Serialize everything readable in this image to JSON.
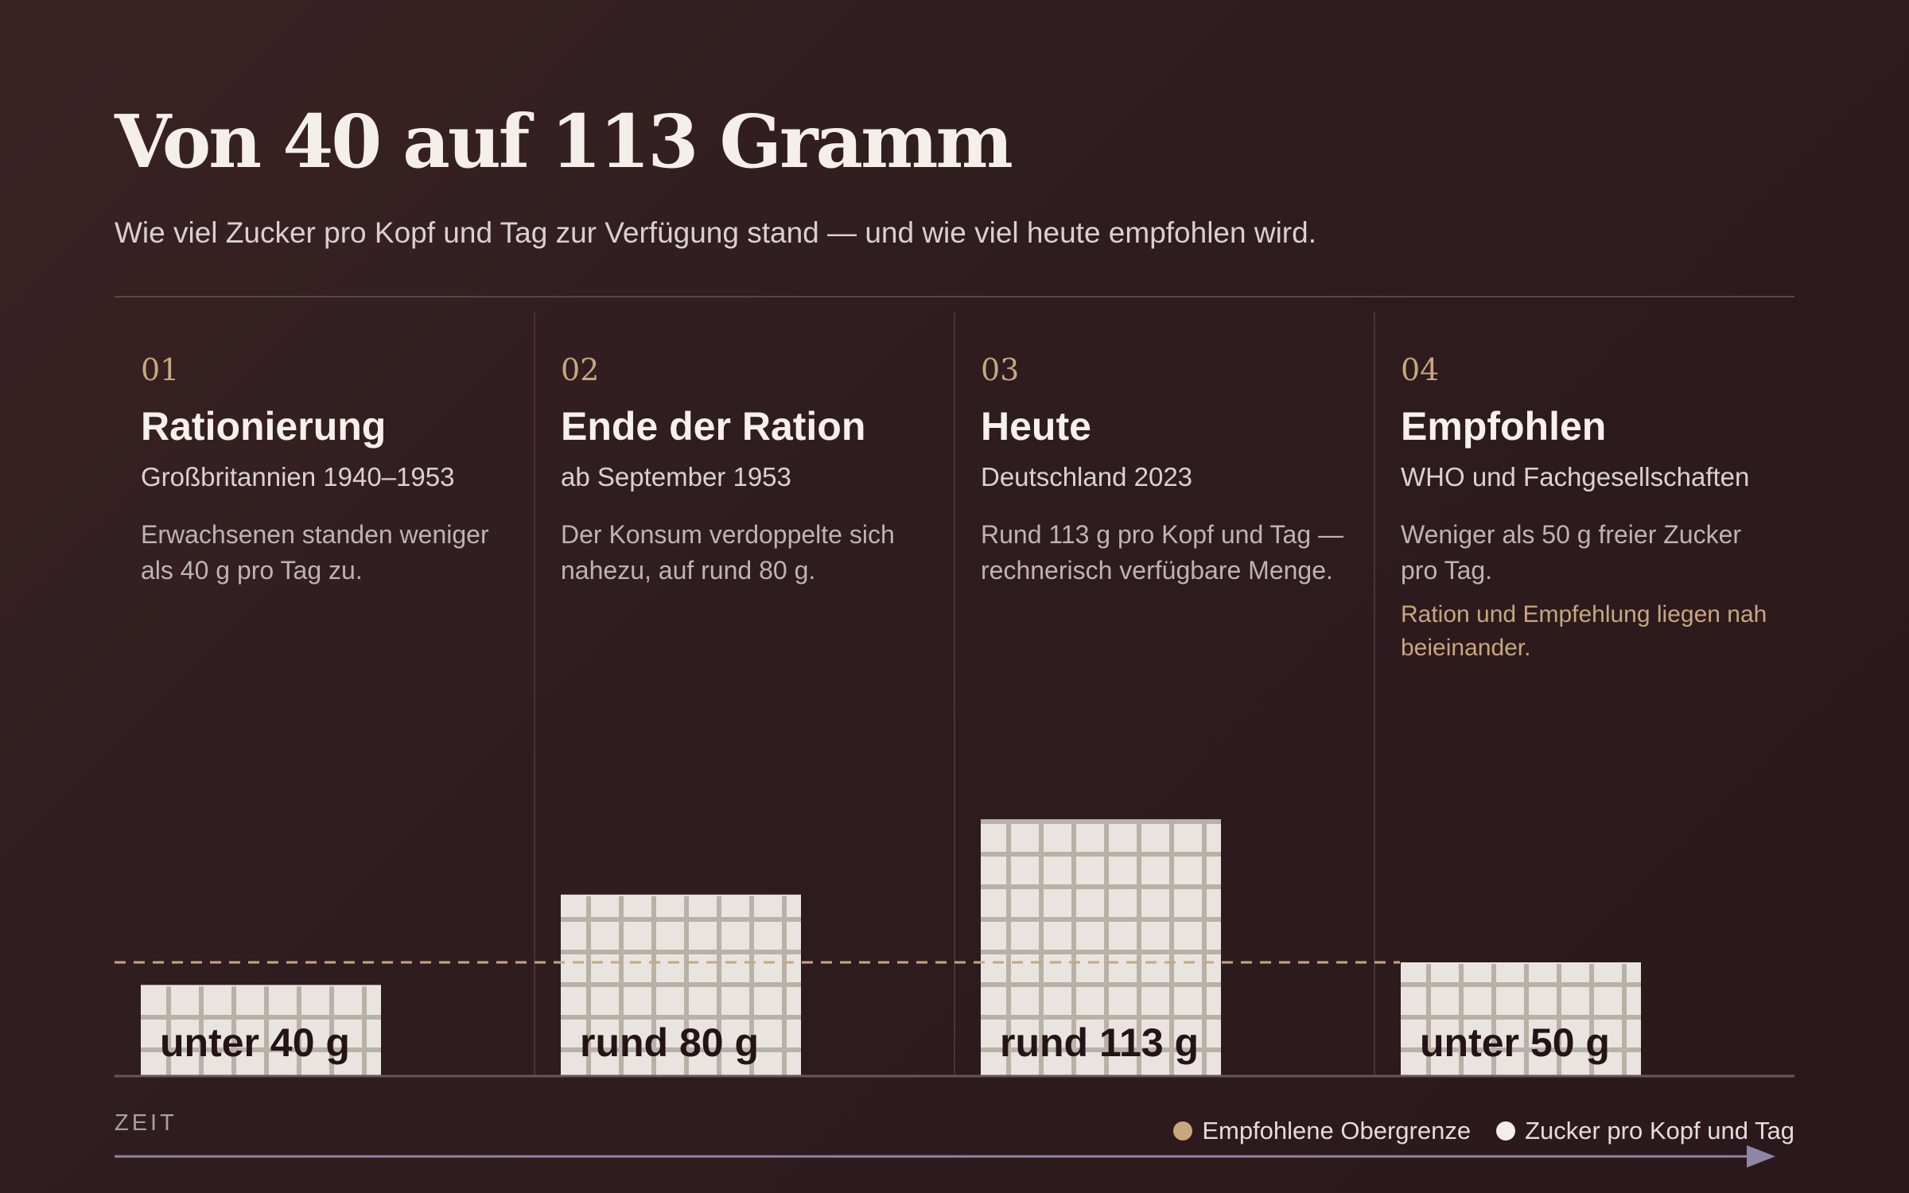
{
  "title": "Von 40 auf 113 Gramm",
  "subtitle": "Wie viel Zucker pro Kopf und Tag zur Verfügung stand — und wie viel heute empfohlen wird.",
  "columns": [
    {
      "num": "01",
      "name": "Rationierung",
      "place": "Großbritannien 1940–1953",
      "desc": "Erwachsenen standen weniger als 40 g pro Tag zu.",
      "note": ""
    },
    {
      "num": "02",
      "name": "Ende der Ration",
      "place": "ab September 1953",
      "desc": "Der Konsum verdoppelte sich nahezu, auf rund 80 g.",
      "note": ""
    },
    {
      "num": "03",
      "name": "Heute",
      "place": "Deutschland 2023",
      "desc": "Rund 113 g pro Kopf und Tag — rechnerisch verfügbare Menge.",
      "note": ""
    },
    {
      "num": "04",
      "name": "Empfohlen",
      "place": "WHO und Fachgesellschaften",
      "desc": "Weniger als 50 g freier Zucker pro Tag.",
      "note": "Ration und Empfehlung liegen nah beieinander."
    }
  ],
  "axis_label": "ZEIT",
  "legend": {
    "limit": "Empfohlene Obergrenze",
    "sugar": "Zucker pro Kopf und Tag"
  },
  "colors": {
    "background": "#2e1c1f",
    "accent": "#c8a77c",
    "cube": "#e9e4df",
    "cube_grid": "#b9b1a6"
  },
  "chart_data": {
    "type": "bar",
    "categories": [
      "Rationierung",
      "Ende der Ration",
      "Heute",
      "Empfohlen"
    ],
    "values": [
      40,
      80,
      113,
      50
    ],
    "value_labels": [
      "unter 40 g",
      "rund 80 g",
      "rund 113 g",
      "unter 50 g"
    ],
    "reference_line": {
      "value": 50,
      "label": "Empfohlene Obergrenze"
    },
    "series_name": "Zucker pro Kopf und Tag",
    "ylim": [
      0,
      113
    ],
    "grid": false,
    "legend_position": "bottom-right"
  }
}
